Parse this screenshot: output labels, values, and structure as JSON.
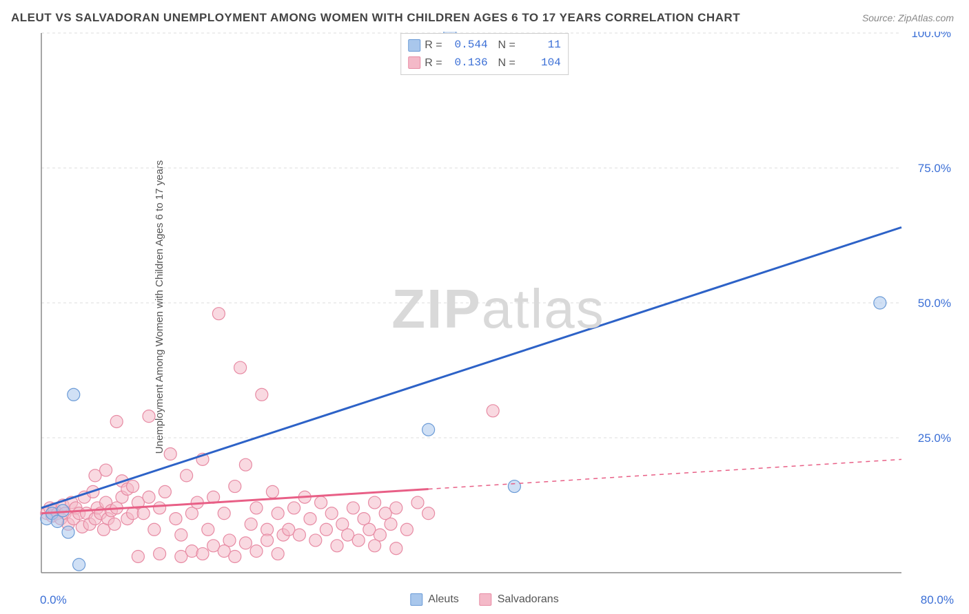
{
  "title": "ALEUT VS SALVADORAN UNEMPLOYMENT AMONG WOMEN WITH CHILDREN AGES 6 TO 17 YEARS CORRELATION CHART",
  "source": "Source: ZipAtlas.com",
  "yaxis_label": "Unemployment Among Women with Children Ages 6 to 17 years",
  "watermark": {
    "bold": "ZIP",
    "rest": "atlas"
  },
  "chart": {
    "type": "scatter",
    "background_color": "#ffffff",
    "grid_color": "#dddddd",
    "axis_color": "#888888",
    "xlim": [
      0,
      80
    ],
    "ylim": [
      0,
      100
    ],
    "ytick_step": 25,
    "xtick_labels": [
      "0.0%",
      "80.0%"
    ],
    "ytick_labels": [
      "25.0%",
      "50.0%",
      "75.0%",
      "100.0%"
    ],
    "ytick_color": "#3b6fd6",
    "ytick_fontsize": 17,
    "marker_radius": 9,
    "marker_opacity": 0.55,
    "series": [
      {
        "name": "Aleuts",
        "key": "aleuts",
        "marker_fill": "#a9c7ec",
        "marker_stroke": "#6a9ad6",
        "line_color": "#2d62c7",
        "line_width": 3,
        "r": "0.544",
        "n": "11",
        "trend": {
          "x1": 0,
          "y1": 12,
          "x2": 80,
          "y2": 64,
          "solid_to": 80
        },
        "points": [
          [
            0.5,
            10
          ],
          [
            1,
            11
          ],
          [
            1.5,
            9.5
          ],
          [
            2,
            11.5
          ],
          [
            2.5,
            7.5
          ],
          [
            3.5,
            1.5
          ],
          [
            3,
            33
          ],
          [
            36,
            26.5
          ],
          [
            44,
            16
          ],
          [
            78,
            50
          ],
          [
            38,
            100
          ]
        ]
      },
      {
        "name": "Salvadorans",
        "key": "salvadorans",
        "marker_fill": "#f4b9c8",
        "marker_stroke": "#e78aa3",
        "line_color": "#e85f86",
        "line_width": 3,
        "r": "0.136",
        "n": "104",
        "trend": {
          "x1": 0,
          "y1": 11,
          "x2": 80,
          "y2": 21,
          "solid_to": 36
        },
        "points": [
          [
            0.5,
            11
          ],
          [
            0.8,
            12
          ],
          [
            1,
            10.5
          ],
          [
            1.2,
            11.8
          ],
          [
            1.5,
            11
          ],
          [
            1.8,
            10
          ],
          [
            2,
            12.5
          ],
          [
            2.2,
            11
          ],
          [
            2.5,
            9
          ],
          [
            2.8,
            13
          ],
          [
            3,
            10
          ],
          [
            3.2,
            12
          ],
          [
            3.5,
            11
          ],
          [
            3.8,
            8.5
          ],
          [
            4,
            14
          ],
          [
            4.2,
            11
          ],
          [
            4.5,
            9
          ],
          [
            4.8,
            15
          ],
          [
            5,
            10
          ],
          [
            5.2,
            12
          ],
          [
            5.5,
            11
          ],
          [
            5.8,
            8
          ],
          [
            6,
            13
          ],
          [
            6.2,
            10
          ],
          [
            6.5,
            11.5
          ],
          [
            6.8,
            9
          ],
          [
            7,
            12
          ],
          [
            7.5,
            14
          ],
          [
            8,
            10
          ],
          [
            8.5,
            11
          ],
          [
            5,
            18
          ],
          [
            6,
            19
          ],
          [
            7,
            28
          ],
          [
            7.5,
            17
          ],
          [
            8,
            15.5
          ],
          [
            8.5,
            16
          ],
          [
            9,
            13
          ],
          [
            9.5,
            11
          ],
          [
            10,
            14
          ],
          [
            10.5,
            8
          ],
          [
            11,
            12
          ],
          [
            11.5,
            15
          ],
          [
            12,
            22
          ],
          [
            12.5,
            10
          ],
          [
            13,
            7
          ],
          [
            13.5,
            18
          ],
          [
            14,
            11
          ],
          [
            14.5,
            13
          ],
          [
            15,
            21
          ],
          [
            15.5,
            8
          ],
          [
            16,
            14
          ],
          [
            16.5,
            48
          ],
          [
            17,
            11
          ],
          [
            17.5,
            6
          ],
          [
            18,
            16
          ],
          [
            18.5,
            38
          ],
          [
            19,
            20
          ],
          [
            19.5,
            9
          ],
          [
            20,
            12
          ],
          [
            20.5,
            33
          ],
          [
            21,
            8
          ],
          [
            21.5,
            15
          ],
          [
            22,
            11
          ],
          [
            22.5,
            7
          ],
          [
            13,
            3
          ],
          [
            14,
            4
          ],
          [
            15,
            3.5
          ],
          [
            16,
            5
          ],
          [
            17,
            4
          ],
          [
            18,
            3
          ],
          [
            19,
            5.5
          ],
          [
            20,
            4
          ],
          [
            21,
            6
          ],
          [
            22,
            3.5
          ],
          [
            23,
            8
          ],
          [
            23.5,
            12
          ],
          [
            24,
            7
          ],
          [
            24.5,
            14
          ],
          [
            25,
            10
          ],
          [
            25.5,
            6
          ],
          [
            26,
            13
          ],
          [
            26.5,
            8
          ],
          [
            27,
            11
          ],
          [
            27.5,
            5
          ],
          [
            28,
            9
          ],
          [
            28.5,
            7
          ],
          [
            29,
            12
          ],
          [
            29.5,
            6
          ],
          [
            30,
            10
          ],
          [
            30.5,
            8
          ],
          [
            31,
            13
          ],
          [
            31.5,
            7
          ],
          [
            32,
            11
          ],
          [
            32.5,
            9
          ],
          [
            33,
            12
          ],
          [
            34,
            8
          ],
          [
            35,
            13
          ],
          [
            36,
            11
          ],
          [
            31,
            5
          ],
          [
            33,
            4.5
          ],
          [
            42,
            30
          ],
          [
            9,
            3
          ],
          [
            11,
            3.5
          ],
          [
            10,
            29
          ]
        ]
      }
    ]
  },
  "legend": {
    "items": [
      {
        "label": "Aleuts",
        "fill": "#a9c7ec",
        "stroke": "#6a9ad6"
      },
      {
        "label": "Salvadorans",
        "fill": "#f4b9c8",
        "stroke": "#e78aa3"
      }
    ]
  }
}
